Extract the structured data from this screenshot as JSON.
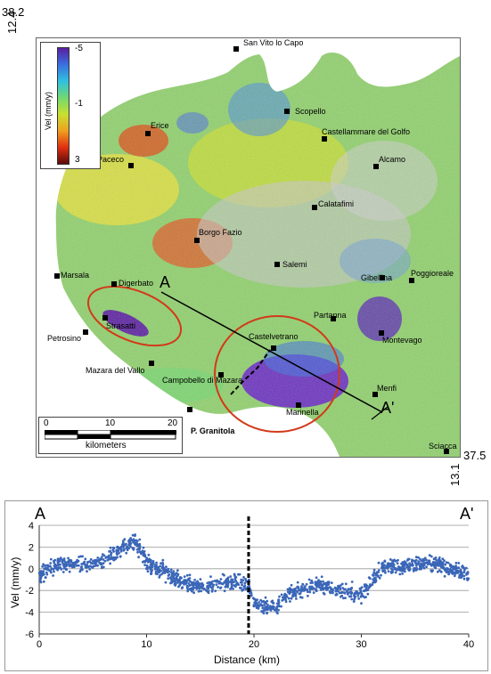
{
  "map": {
    "coords": {
      "lat_top": "38.2",
      "lon_left": "12.4",
      "lat_bottom": "37.5",
      "lon_right": "13.1"
    },
    "legend": {
      "title": "Vel (mm/y)",
      "ticks": [
        "-5",
        "-1",
        "3"
      ],
      "colors": [
        "#5a1fa0",
        "#3a6fe0",
        "#30c0e0",
        "#70d870",
        "#c8e030",
        "#f0a020",
        "#e03010",
        "#5a0a0a"
      ]
    },
    "towns": [
      {
        "name": "San Vito lo Capo"
      },
      {
        "name": "Scopello"
      },
      {
        "name": "Castellammare del Golfo"
      },
      {
        "name": "Erice"
      },
      {
        "name": "Paceco"
      },
      {
        "name": "Alcamo"
      },
      {
        "name": "Calatafimi"
      },
      {
        "name": "Borgo Fazio"
      },
      {
        "name": "Salemi"
      },
      {
        "name": "Marsala"
      },
      {
        "name": "Digerbato"
      },
      {
        "name": "Gibellina"
      },
      {
        "name": "Poggioreale"
      },
      {
        "name": "Strasatti"
      },
      {
        "name": "Petrosino"
      },
      {
        "name": "Partanna"
      },
      {
        "name": "Castelvetrano"
      },
      {
        "name": "Montevago"
      },
      {
        "name": "Mazara del Vallo"
      },
      {
        "name": "Campobello di Mazara"
      },
      {
        "name": "Menfi"
      },
      {
        "name": "Marinella"
      },
      {
        "name": "P. Granitola"
      },
      {
        "name": "Sciacca"
      }
    ],
    "section": {
      "start": "A",
      "end": "A'"
    },
    "scalebar": {
      "ticks": [
        "0",
        "10",
        "20"
      ],
      "unit": "kilometers"
    }
  },
  "chart_data": {
    "type": "scatter",
    "title": "",
    "start_label": "A",
    "end_label": "A'",
    "xlabel": "Distance (km)",
    "ylabel": "Vel (mm/y)",
    "xlim": [
      0,
      40
    ],
    "ylim": [
      -6,
      4
    ],
    "xticks": [
      0,
      10,
      20,
      30,
      40
    ],
    "yticks": [
      4,
      2,
      0,
      -2,
      -4,
      -6
    ],
    "grid": "horizontal",
    "marker_color": "#3a66b8",
    "fault_line_x": 19.5,
    "profile": {
      "x": [
        0,
        2,
        4,
        6,
        8,
        9,
        10,
        12,
        14,
        16,
        18,
        19.5,
        20,
        21,
        22,
        23,
        24,
        26,
        28,
        30,
        32,
        34,
        36,
        37,
        38,
        40
      ],
      "y": [
        -0.6,
        0.5,
        0.4,
        0.6,
        2.0,
        2.5,
        0.6,
        -0.5,
        -1.5,
        -1.6,
        -1.2,
        -1.5,
        -3.2,
        -3.5,
        -3.6,
        -2.5,
        -2.0,
        -1.5,
        -2.0,
        -2.3,
        0.2,
        0.3,
        0.6,
        0.5,
        0.1,
        -0.6
      ],
      "spread": 0.9,
      "point_count": 1400
    }
  }
}
